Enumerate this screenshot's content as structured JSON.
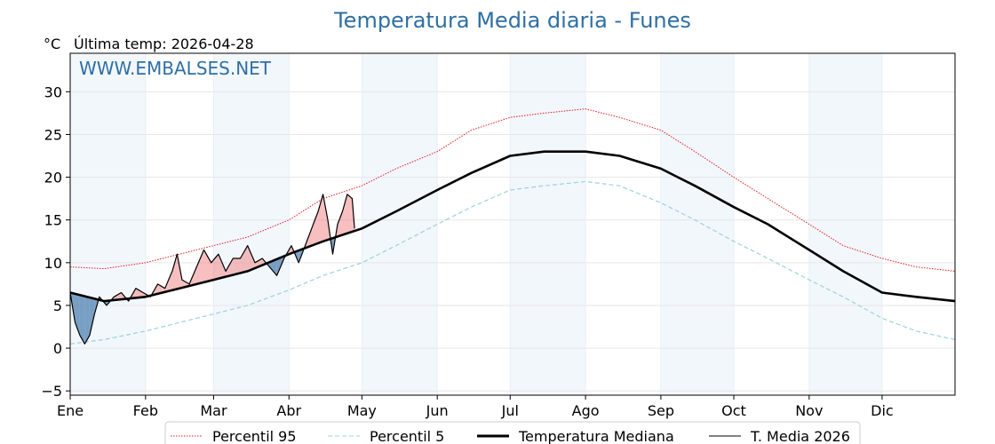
{
  "chart_data": {
    "type": "line",
    "title": "Temperatura Media diaria - Funes",
    "unit": "°C",
    "subtitle": "Última temp: 2026-04-28",
    "watermark": "WWW.EMBALSES.NET",
    "x_axis": {
      "type": "day_of_year",
      "range": [
        1,
        365
      ],
      "month_labels": [
        "Ene",
        "Feb",
        "Mar",
        "Abr",
        "May",
        "Jun",
        "Jul",
        "Ago",
        "Sep",
        "Oct",
        "Nov",
        "Dic"
      ]
    },
    "y_axis": {
      "range": [
        -5.5,
        34.5
      ],
      "ticks": [
        -5,
        0,
        5,
        10,
        15,
        20,
        25,
        30
      ]
    },
    "grid": true,
    "shaded_months": [
      "Ene",
      "Mar",
      "May",
      "Jul",
      "Sep",
      "Nov"
    ],
    "legend_position": "bottom-center",
    "colors": {
      "p95": "#e31a1c",
      "p5": "#9fd0e0",
      "median": "#000000",
      "current": "#000000",
      "above_fill": "#f08080",
      "below_fill": "#4f81b0"
    },
    "series": [
      {
        "name": "Percentil 95",
        "key": "p95",
        "style": "dotted",
        "points": [
          [
            1,
            9.5
          ],
          [
            15,
            9.3
          ],
          [
            32,
            10.0
          ],
          [
            46,
            11.0
          ],
          [
            60,
            12.0
          ],
          [
            74,
            13.0
          ],
          [
            91,
            15.0
          ],
          [
            105,
            17.5
          ],
          [
            121,
            19.0
          ],
          [
            135,
            21.0
          ],
          [
            152,
            23.0
          ],
          [
            166,
            25.5
          ],
          [
            182,
            27.0
          ],
          [
            196,
            27.5
          ],
          [
            213,
            28.0
          ],
          [
            227,
            27.0
          ],
          [
            244,
            25.5
          ],
          [
            258,
            23.0
          ],
          [
            274,
            20.0
          ],
          [
            288,
            17.5
          ],
          [
            305,
            14.5
          ],
          [
            319,
            12.0
          ],
          [
            335,
            10.5
          ],
          [
            349,
            9.5
          ],
          [
            365,
            9.0
          ]
        ]
      },
      {
        "name": "Percentil 5",
        "key": "p5",
        "style": "dashed",
        "points": [
          [
            1,
            0.5
          ],
          [
            15,
            1.0
          ],
          [
            32,
            2.0
          ],
          [
            46,
            3.0
          ],
          [
            60,
            4.0
          ],
          [
            74,
            5.0
          ],
          [
            91,
            6.8
          ],
          [
            105,
            8.5
          ],
          [
            121,
            10.0
          ],
          [
            135,
            12.0
          ],
          [
            152,
            14.5
          ],
          [
            166,
            16.5
          ],
          [
            182,
            18.5
          ],
          [
            196,
            19.0
          ],
          [
            213,
            19.5
          ],
          [
            227,
            19.0
          ],
          [
            244,
            17.0
          ],
          [
            258,
            15.0
          ],
          [
            274,
            12.5
          ],
          [
            288,
            10.5
          ],
          [
            305,
            8.0
          ],
          [
            319,
            6.0
          ],
          [
            335,
            3.5
          ],
          [
            349,
            2.0
          ],
          [
            365,
            1.0
          ]
        ]
      },
      {
        "name": "Temperatura Mediana",
        "key": "median",
        "style": "solid-thick",
        "points": [
          [
            1,
            6.5
          ],
          [
            15,
            5.5
          ],
          [
            32,
            6.0
          ],
          [
            46,
            7.0
          ],
          [
            60,
            8.0
          ],
          [
            74,
            9.0
          ],
          [
            91,
            11.0
          ],
          [
            105,
            12.5
          ],
          [
            121,
            14.0
          ],
          [
            135,
            16.0
          ],
          [
            152,
            18.5
          ],
          [
            166,
            20.5
          ],
          [
            182,
            22.5
          ],
          [
            196,
            23.0
          ],
          [
            213,
            23.0
          ],
          [
            227,
            22.5
          ],
          [
            244,
            21.0
          ],
          [
            258,
            19.0
          ],
          [
            274,
            16.5
          ],
          [
            288,
            14.5
          ],
          [
            305,
            11.5
          ],
          [
            319,
            9.0
          ],
          [
            335,
            6.5
          ],
          [
            349,
            6.0
          ],
          [
            365,
            5.5
          ]
        ]
      },
      {
        "name": "T. Media 2026",
        "key": "current",
        "style": "solid",
        "points": [
          [
            1,
            6.5
          ],
          [
            3,
            3.0
          ],
          [
            5,
            1.5
          ],
          [
            7,
            0.5
          ],
          [
            9,
            1.5
          ],
          [
            11,
            4.0
          ],
          [
            13,
            6.0
          ],
          [
            16,
            5.0
          ],
          [
            19,
            6.0
          ],
          [
            22,
            6.5
          ],
          [
            25,
            5.5
          ],
          [
            28,
            7.0
          ],
          [
            31,
            6.5
          ],
          [
            34,
            6.0
          ],
          [
            37,
            7.5
          ],
          [
            40,
            7.0
          ],
          [
            43,
            9.0
          ],
          [
            45,
            11.0
          ],
          [
            47,
            8.0
          ],
          [
            50,
            7.5
          ],
          [
            53,
            9.5
          ],
          [
            56,
            11.5
          ],
          [
            59,
            10.0
          ],
          [
            62,
            11.0
          ],
          [
            65,
            9.0
          ],
          [
            68,
            10.5
          ],
          [
            71,
            10.5
          ],
          [
            74,
            12.0
          ],
          [
            77,
            10.0
          ],
          [
            80,
            10.5
          ],
          [
            83,
            9.5
          ],
          [
            86,
            8.5
          ],
          [
            89,
            10.5
          ],
          [
            92,
            12.0
          ],
          [
            95,
            10.0
          ],
          [
            97,
            11.5
          ],
          [
            99,
            13.0
          ],
          [
            101,
            14.5
          ],
          [
            103,
            16.0
          ],
          [
            105,
            18.0
          ],
          [
            107,
            15.0
          ],
          [
            109,
            11.0
          ],
          [
            111,
            14.5
          ],
          [
            113,
            16.0
          ],
          [
            115,
            18.0
          ],
          [
            117,
            17.5
          ],
          [
            118,
            14.0
          ]
        ]
      }
    ]
  }
}
